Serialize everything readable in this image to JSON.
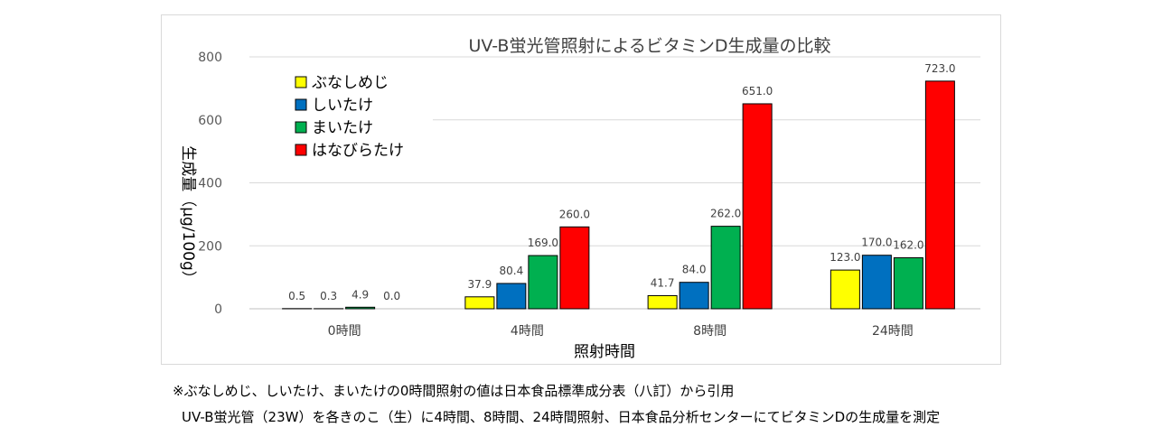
{
  "chart_data": {
    "type": "bar",
    "title": "UV-B蛍光管照射によるビタミンD生成量の比較",
    "xlabel": "照射時間",
    "ylabel": "生成量（µg/100g）",
    "ylim": [
      0,
      800
    ],
    "yticks": [
      "0",
      "200",
      "400",
      "600",
      "800"
    ],
    "grid": true,
    "legend_position": "top-left",
    "categories": [
      "0時間",
      "4時間",
      "8時間",
      "24時間"
    ],
    "series": [
      {
        "name": "ぶなしめじ",
        "color": "#ffff00",
        "values": [
          0.5,
          37.9,
          41.7,
          123.0
        ],
        "labels": [
          "0.5",
          "37.9",
          "41.7",
          "123.0"
        ]
      },
      {
        "name": "しいたけ",
        "color": "#0070c0",
        "values": [
          0.3,
          80.4,
          84.0,
          170.0
        ],
        "labels": [
          "0.3",
          "80.4",
          "84.0",
          "170.0"
        ]
      },
      {
        "name": "まいたけ",
        "color": "#00b050",
        "values": [
          4.9,
          169.0,
          262.0,
          162.0
        ],
        "labels": [
          "4.9",
          "169.0",
          "262.0",
          "162.0"
        ]
      },
      {
        "name": "はなびらたけ",
        "color": "#ff0000",
        "values": [
          0.0,
          260.0,
          651.0,
          723.0
        ],
        "labels": [
          "0.0",
          "260.0",
          "651.0",
          "723.0"
        ]
      }
    ]
  },
  "notes": {
    "line1": "※ぶなしめじ、しいたけ、まいたけの0時間照射の値は日本食品標準成分表（八訂）から引用",
    "line2": "UV-B蛍光管（23W）を各きのこ（生）に4時間、8時間、24時間照射、日本食品分析センターにてビタミンDの生成量を測定"
  }
}
